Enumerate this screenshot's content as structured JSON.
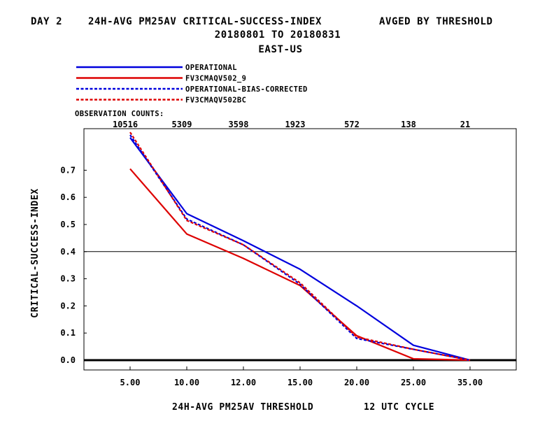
{
  "header": {
    "line1_left": "DAY 2",
    "line1_mid": "24H-AVG PM25AV CRITICAL-SUCCESS-INDEX",
    "line1_right": "AVGED BY THRESHOLD",
    "line2": "20180801 TO 20180831",
    "line3": "EAST-US"
  },
  "chart_data": {
    "type": "line",
    "categories": [
      "5.00",
      "10.00",
      "12.00",
      "15.00",
      "20.00",
      "25.00",
      "35.00"
    ],
    "xlabel": "24H-AVG PM25AV THRESHOLD",
    "xlabel_note": "12 UTC CYCLE",
    "ylabel": "CRITICAL-SUCCESS-INDEX",
    "ylim": [
      -0.03,
      0.84
    ],
    "yticks": [
      "0.0",
      "0.1",
      "0.2",
      "0.3",
      "0.4",
      "0.5",
      "0.6",
      "0.7"
    ],
    "reference_line_y": 0.4,
    "observation_counts_label": "OBSERVATION COUNTS:",
    "observation_counts": [
      "10516",
      "5309",
      "3598",
      "1923",
      "572",
      "138",
      "21"
    ],
    "series": [
      {
        "name": "OPERATIONAL",
        "color": "#0000dd",
        "style": "solid",
        "values": [
          0.82,
          0.54,
          0.44,
          0.335,
          0.2,
          0.055,
          0.0
        ]
      },
      {
        "name": "FV3CMAQV502_9",
        "color": "#dd0000",
        "style": "solid",
        "values": [
          0.705,
          0.465,
          0.375,
          0.275,
          0.09,
          0.005,
          0.0
        ]
      },
      {
        "name": "OPERATIONAL-BIAS-CORRECTED",
        "color": "#0000dd",
        "style": "dashed",
        "values": [
          0.83,
          0.52,
          0.425,
          0.28,
          0.08,
          0.04,
          0.0
        ]
      },
      {
        "name": "FV3CMAQV502BC",
        "color": "#dd0000",
        "style": "dashed",
        "values": [
          0.84,
          0.515,
          0.425,
          0.285,
          0.085,
          0.04,
          0.0
        ]
      }
    ]
  }
}
